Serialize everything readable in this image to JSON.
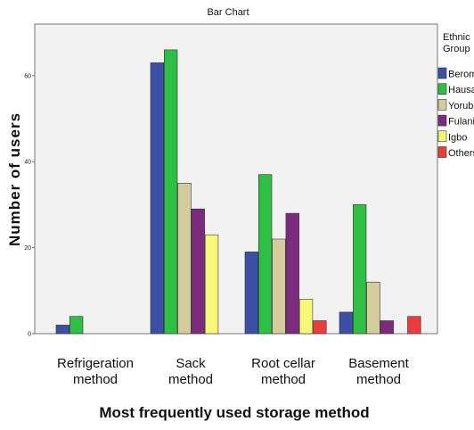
{
  "chart_data": {
    "type": "bar",
    "title": "Bar Chart",
    "xlabel": "Most frequently used storage method",
    "ylabel": "Number of users",
    "categories": [
      [
        "Refrigeration",
        "method"
      ],
      [
        "Sack",
        "method"
      ],
      [
        "Root cellar",
        "method"
      ],
      [
        "Basement",
        "method"
      ]
    ],
    "ylim": [
      0,
      72
    ],
    "yticks": [
      0,
      20,
      40,
      60
    ],
    "grid": false,
    "legend": {
      "title": [
        "Ethnic",
        "Group"
      ],
      "placement": "right"
    },
    "series": [
      {
        "name": "Berom",
        "color": "#3b4fa6",
        "values": [
          2,
          63,
          19,
          5
        ]
      },
      {
        "name": "Hausa",
        "color": "#2fbf45",
        "values": [
          4,
          66,
          37,
          30
        ]
      },
      {
        "name": "Yoruba",
        "color": "#d4cc9c",
        "values": [
          0,
          35,
          22,
          12
        ]
      },
      {
        "name": "Fulani",
        "color": "#7c2a7c",
        "values": [
          0,
          29,
          28,
          3
        ]
      },
      {
        "name": "Igbo",
        "color": "#f7f77a",
        "values": [
          0,
          23,
          8,
          0
        ]
      },
      {
        "name": "Others",
        "color": "#ea3c3c",
        "values": [
          0,
          0,
          3,
          4
        ]
      }
    ],
    "plot_background": "#f2f2f2"
  }
}
